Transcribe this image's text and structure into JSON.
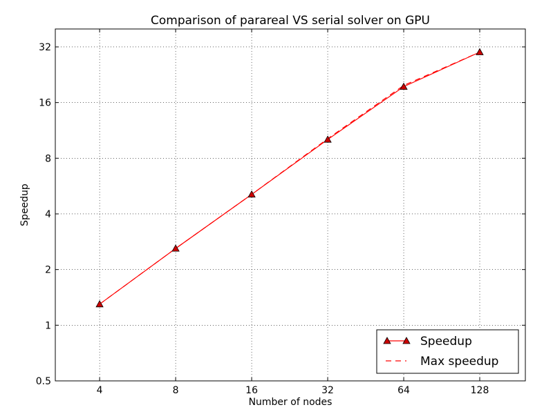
{
  "chart_data": {
    "type": "line",
    "title": "Comparison of parareal VS serial solver on GPU",
    "xlabel": "Number of nodes",
    "ylabel": "Speedup",
    "x_scale": "log2",
    "y_scale": "log2",
    "xlim": [
      2.67,
      194
    ],
    "ylim": [
      0.5,
      40
    ],
    "x_ticks": [
      4,
      8,
      16,
      32,
      64,
      128
    ],
    "x_tick_labels": [
      "4",
      "8",
      "16",
      "32",
      "64",
      "128"
    ],
    "y_ticks": [
      0.5,
      1,
      2,
      4,
      8,
      16,
      32
    ],
    "y_tick_labels": [
      "0.5",
      "1",
      "2",
      "4",
      "8",
      "16",
      "32"
    ],
    "grid": true,
    "legend_position": "bottom-right",
    "series": [
      {
        "name": "Speedup",
        "style": "solid-triangle",
        "color": "#ff0000",
        "marker_fill": "#cc0000",
        "x": [
          4,
          8,
          16,
          32,
          64,
          128
        ],
        "values": [
          1.3,
          2.6,
          5.1,
          10.1,
          19.5,
          30.0
        ]
      },
      {
        "name": "Max speedup",
        "style": "dashed",
        "color": "#ff0000",
        "x": [
          4,
          8,
          16,
          32,
          64,
          128
        ],
        "values": [
          1.3,
          2.6,
          5.1,
          10.2,
          19.8,
          30.0
        ]
      }
    ]
  }
}
